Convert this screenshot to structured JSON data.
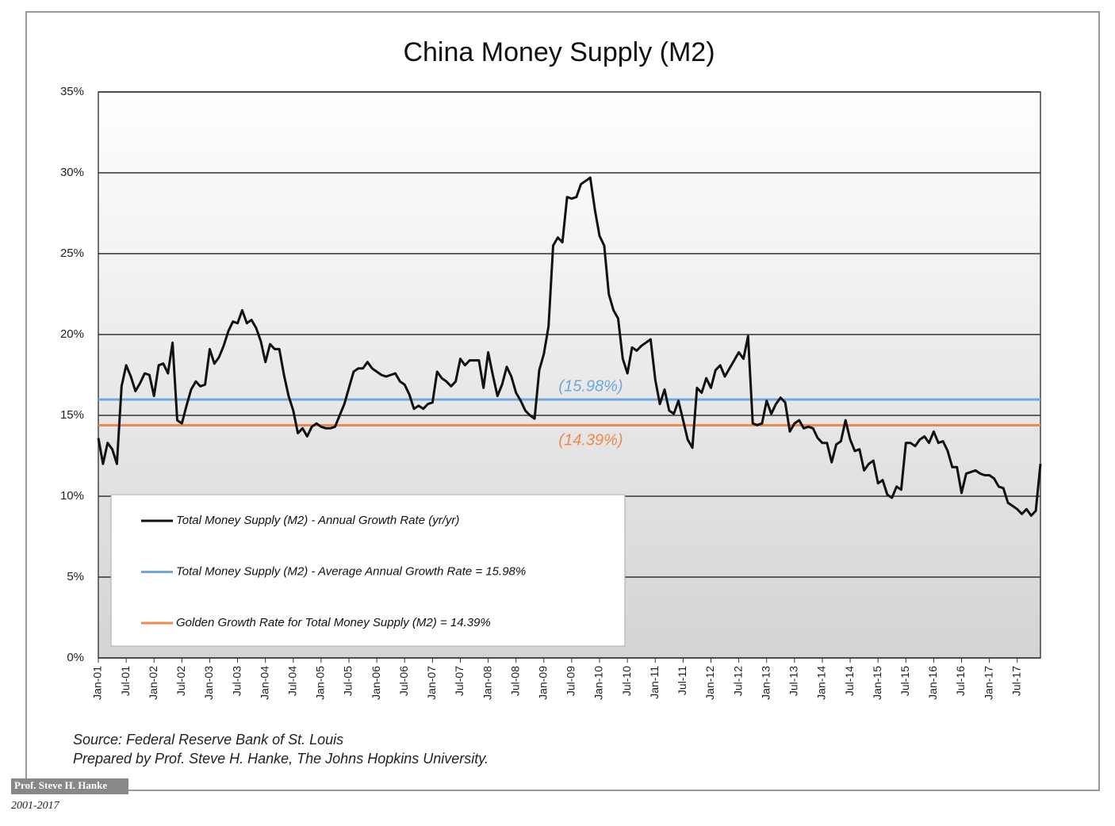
{
  "chart_data": {
    "type": "line",
    "title": "China Money Supply (M2)",
    "categories": [
      "Jan-01",
      null,
      null,
      null,
      null,
      null,
      "Jul-01",
      null,
      null,
      null,
      null,
      null,
      "Jan-02",
      null,
      null,
      null,
      null,
      null,
      "Jul-02",
      null,
      null,
      null,
      null,
      null,
      "Jan-03",
      null,
      null,
      null,
      null,
      null,
      "Jul-03",
      null,
      null,
      null,
      null,
      null,
      "Jan-04",
      null,
      null,
      null,
      null,
      null,
      "Jul-04",
      null,
      null,
      null,
      null,
      null,
      "Jan-05",
      null,
      null,
      null,
      null,
      null,
      "Jul-05",
      null,
      null,
      null,
      null,
      null,
      "Jan-06",
      null,
      null,
      null,
      null,
      null,
      "Jul-06",
      null,
      null,
      null,
      null,
      null,
      "Jan-07",
      null,
      null,
      null,
      null,
      null,
      "Jul-07",
      null,
      null,
      null,
      null,
      null,
      "Jan-08",
      null,
      null,
      null,
      null,
      null,
      "Jul-08",
      null,
      null,
      null,
      null,
      null,
      "Jan-09",
      null,
      null,
      null,
      null,
      null,
      "Jul-09",
      null,
      null,
      null,
      null,
      null,
      "Jan-10",
      null,
      null,
      null,
      null,
      null,
      "Jul-10",
      null,
      null,
      null,
      null,
      null,
      "Jan-11",
      null,
      null,
      null,
      null,
      null,
      "Jul-11",
      null,
      null,
      null,
      null,
      null,
      "Jan-12",
      null,
      null,
      null,
      null,
      null,
      "Jul-12",
      null,
      null,
      null,
      null,
      null,
      "Jan-13",
      null,
      null,
      null,
      null,
      null,
      "Jul-13",
      null,
      null,
      null,
      null,
      null,
      "Jan-14",
      null,
      null,
      null,
      null,
      null,
      "Jul-14",
      null,
      null,
      null,
      null,
      null,
      "Jan-15",
      null,
      null,
      null,
      null,
      null,
      "Jul-15",
      null,
      null,
      null,
      null,
      null,
      "Jan-16",
      null,
      null,
      null,
      null,
      null,
      "Jul-16",
      null,
      null,
      null,
      null,
      null,
      "Jan-17",
      null,
      null,
      null,
      null,
      null,
      "Jul-17",
      null,
      null,
      null,
      null,
      null
    ],
    "series": [
      {
        "name": "Total Money Supply (M2) - Annual Growth Rate (yr/yr)",
        "color": "#111111",
        "values": [
          13.6,
          12.0,
          13.3,
          12.9,
          12.0,
          16.8,
          18.1,
          17.4,
          16.5,
          17.0,
          17.6,
          17.5,
          16.2,
          18.1,
          18.2,
          17.6,
          19.5,
          14.7,
          14.5,
          15.6,
          16.6,
          17.1,
          16.8,
          16.9,
          19.1,
          18.2,
          18.6,
          19.3,
          20.2,
          20.8,
          20.7,
          21.5,
          20.7,
          20.9,
          20.4,
          19.6,
          18.3,
          19.4,
          19.1,
          19.1,
          17.5,
          16.2,
          15.3,
          13.9,
          14.2,
          13.7,
          14.3,
          14.5,
          14.3,
          14.2,
          14.2,
          14.3,
          15.0,
          15.7,
          16.7,
          17.7,
          17.9,
          17.9,
          18.3,
          17.9,
          17.7,
          17.5,
          17.4,
          17.5,
          17.6,
          17.1,
          16.9,
          16.3,
          15.4,
          15.6,
          15.4,
          15.7,
          15.8,
          17.7,
          17.3,
          17.1,
          16.8,
          17.1,
          18.5,
          18.1,
          18.4,
          18.4,
          18.4,
          16.7,
          18.9,
          17.5,
          16.2,
          16.9,
          18.0,
          17.4,
          16.4,
          15.9,
          15.3,
          15.0,
          14.8,
          17.8,
          18.8,
          20.5,
          25.5,
          26.0,
          25.7,
          28.5,
          28.4,
          28.5,
          29.3,
          29.5,
          29.7,
          27.7,
          26.1,
          25.5,
          22.5,
          21.5,
          21.0,
          18.5,
          17.6,
          19.2,
          19.0,
          19.3,
          19.5,
          19.7,
          17.2,
          15.7,
          16.6,
          15.3,
          15.1,
          15.9,
          14.7,
          13.5,
          13.0,
          16.7,
          16.4,
          17.3,
          16.7,
          17.8,
          18.1,
          17.4,
          17.9,
          18.4,
          18.9,
          18.5,
          19.9,
          14.5,
          14.4,
          14.5,
          15.9,
          15.1,
          15.7,
          16.1,
          15.8,
          14.0,
          14.5,
          14.7,
          14.2,
          14.3,
          14.2,
          13.6,
          13.3,
          13.3,
          12.1,
          13.2,
          13.4,
          14.7,
          13.5,
          12.8,
          12.9,
          11.6,
          12.0,
          12.2,
          10.8,
          11.0,
          10.1,
          9.9,
          10.6,
          10.4,
          13.3,
          13.3,
          13.1,
          13.5,
          13.7,
          13.3,
          14.0,
          13.3,
          13.4,
          12.8,
          11.8,
          11.8,
          10.2,
          11.4,
          11.5,
          11.6,
          11.4,
          11.3,
          11.3,
          11.1,
          10.6,
          10.5,
          9.6,
          9.4,
          9.2,
          8.9,
          9.2,
          8.8,
          9.1,
          12.0
        ]
      }
    ],
    "reference_lines": [
      {
        "name": "Total Money Supply (M2) - Average Annual Growth Rate = 15.98%",
        "value": 15.98,
        "label": "(15.98%)",
        "color": "#6fa8dc"
      },
      {
        "name": "Golden Growth Rate for Total Money Supply (M2) = 14.39%",
        "value": 14.39,
        "label": "(14.39%)",
        "color": "#ed8a4c"
      }
    ],
    "ylim": [
      0,
      35
    ],
    "yticks": [
      {
        "value": 0,
        "label": "0%"
      },
      {
        "value": 5,
        "label": "5%"
      },
      {
        "value": 10,
        "label": "10%"
      },
      {
        "value": 15,
        "label": "15%"
      },
      {
        "value": 20,
        "label": "20%"
      },
      {
        "value": 25,
        "label": "25%"
      },
      {
        "value": 30,
        "label": "30%"
      },
      {
        "value": 35,
        "label": "35%"
      }
    ],
    "grid": true,
    "source": "Source: Federal Reserve Bank of St. Louis",
    "prepared_by": "Prepared by Prof. Steve H. Hanke, The Johns Hopkins University."
  },
  "watermark": "Prof. Steve H. Hanke",
  "date_range": "2001-2017"
}
